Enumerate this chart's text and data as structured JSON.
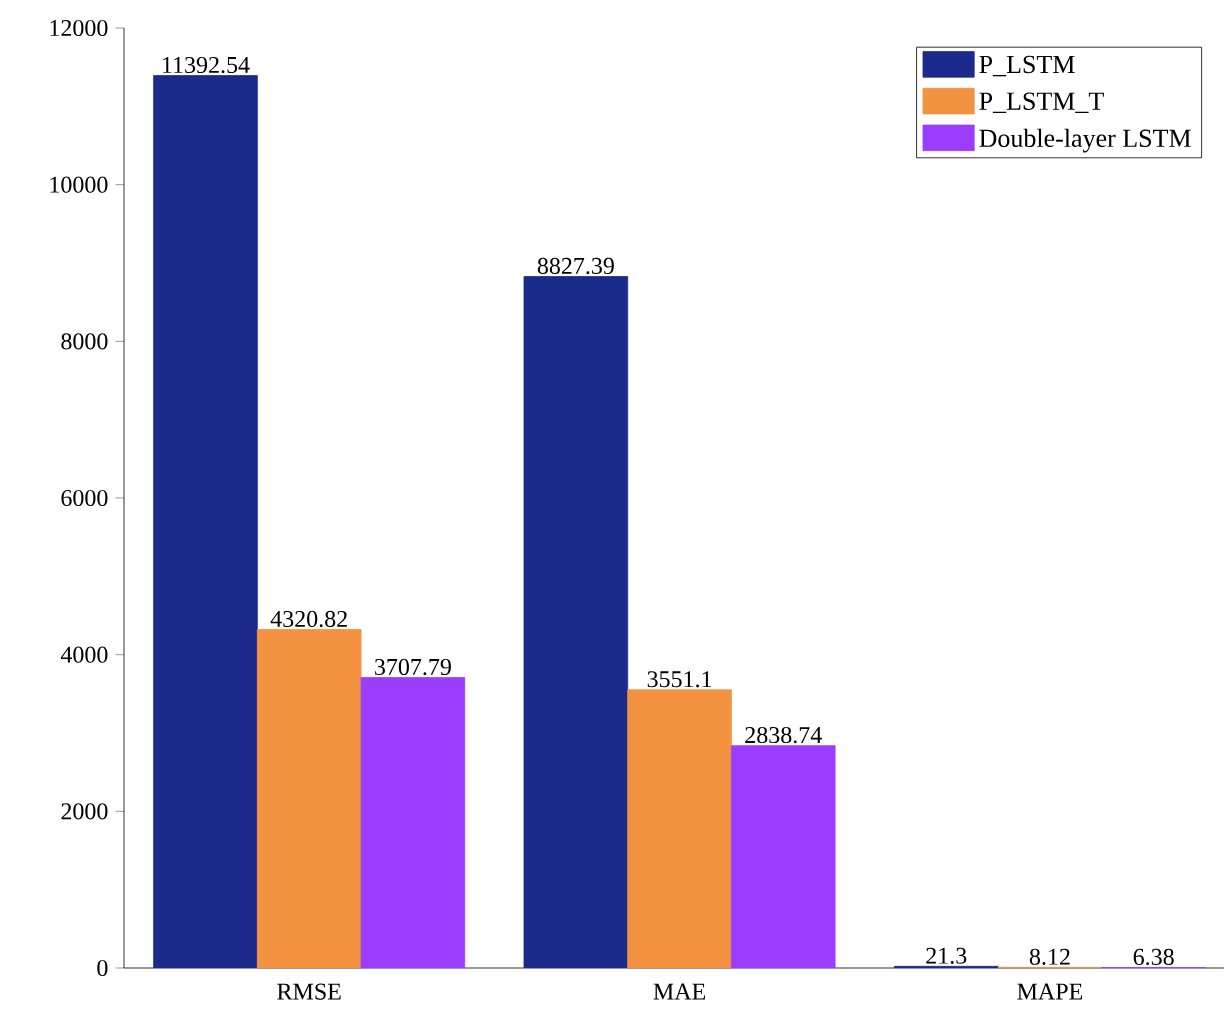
{
  "chart_data": {
    "type": "bar",
    "categories": [
      "RMSE",
      "MAE",
      "MAPE"
    ],
    "series": [
      {
        "name": "P_LSTM",
        "color": "#1c2a8c",
        "values": [
          11392.54,
          8827.39,
          21.3
        ]
      },
      {
        "name": "P_LSTM_T",
        "color": "#f39240",
        "values": [
          4320.82,
          3551.1,
          8.12
        ]
      },
      {
        "name": "Double-layer LSTM",
        "color": "#9c3dfe",
        "values": [
          3707.79,
          2838.74,
          6.38
        ]
      }
    ],
    "ylim": [
      0,
      12000
    ],
    "yticks": [
      0,
      2000,
      4000,
      6000,
      8000,
      10000,
      12000
    ],
    "data_labels": true,
    "legend": "top right",
    "grid": false
  }
}
